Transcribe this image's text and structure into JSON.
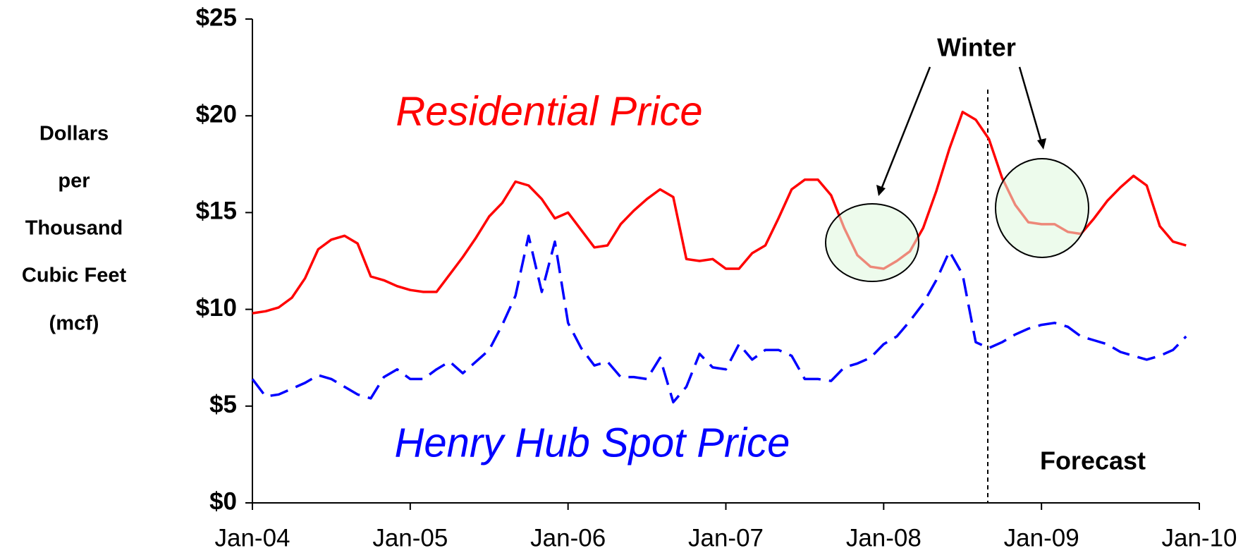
{
  "chart_data": {
    "type": "line",
    "y_label": [
      "Dollars",
      "per",
      "Thousand",
      "Cubic Feet",
      "(mcf)"
    ],
    "annotations": [
      "Winter",
      "Forecast"
    ],
    "categories": [
      "Jan-04",
      null,
      null,
      null,
      null,
      null,
      null,
      null,
      null,
      null,
      null,
      null,
      "Jan-05",
      null,
      null,
      null,
      null,
      null,
      null,
      null,
      null,
      null,
      null,
      null,
      "Jan-06",
      null,
      null,
      null,
      null,
      null,
      null,
      null,
      null,
      null,
      null,
      null,
      "Jan-07",
      null,
      null,
      null,
      null,
      null,
      null,
      null,
      null,
      null,
      null,
      null,
      "Jan-08",
      null,
      null,
      null,
      null,
      null,
      null,
      null,
      null,
      null,
      null,
      null,
      "Jan-09",
      null,
      null,
      null,
      null,
      null,
      null,
      null,
      null,
      null,
      null,
      null,
      "Jan-10"
    ],
    "series": [
      {
        "name": "Residential Price",
        "color": "#ff0000",
        "dashed": false,
        "values": [
          9.8,
          9.9,
          10.1,
          10.6,
          11.6,
          13.1,
          13.6,
          13.8,
          13.4,
          11.7,
          11.5,
          11.2,
          11.0,
          10.9,
          10.9,
          11.8,
          12.7,
          13.7,
          14.8,
          15.5,
          16.6,
          16.4,
          15.7,
          14.7,
          15.0,
          14.1,
          13.2,
          13.3,
          14.4,
          15.1,
          15.7,
          16.2,
          15.8,
          12.6,
          12.5,
          12.6,
          12.1,
          12.1,
          12.9,
          13.3,
          14.7,
          16.2,
          16.7,
          16.7,
          15.9,
          14.2,
          12.8,
          12.2,
          12.1,
          12.5,
          13.0,
          14.2,
          16.1,
          18.3,
          20.2,
          19.8,
          18.8,
          16.8,
          15.4,
          14.5,
          14.4,
          14.4,
          14.0,
          13.9,
          14.7,
          15.6,
          16.3,
          16.9,
          16.4,
          14.3,
          13.5,
          13.3,
          null
        ]
      },
      {
        "name": "Henry Hub Spot Price",
        "color": "#0000ff",
        "dashed": true,
        "values": [
          6.4,
          5.5,
          5.6,
          5.9,
          6.2,
          6.6,
          6.4,
          6.0,
          5.6,
          5.4,
          6.5,
          6.9,
          6.4,
          6.4,
          6.9,
          7.3,
          6.7,
          7.3,
          7.9,
          9.2,
          10.7,
          13.8,
          10.9,
          13.5,
          9.3,
          8.0,
          7.1,
          7.3,
          6.5,
          6.5,
          6.4,
          7.5,
          5.2,
          6.0,
          7.7,
          7.0,
          6.9,
          8.2,
          7.4,
          7.9,
          7.9,
          7.6,
          6.4,
          6.4,
          6.3,
          7.0,
          7.2,
          7.5,
          8.2,
          8.6,
          9.4,
          10.3,
          11.5,
          13.0,
          11.8,
          8.3,
          8.0,
          8.3,
          8.7,
          9.0,
          9.2,
          9.3,
          9.1,
          8.6,
          8.4,
          8.2,
          7.8,
          7.6,
          7.4,
          7.6,
          7.9,
          8.6,
          null
        ]
      }
    ],
    "ylim": [
      0,
      25
    ],
    "yticks": [
      {
        "value": 0,
        "label": "$0"
      },
      {
        "value": 5,
        "label": "$5"
      },
      {
        "value": 10,
        "label": "$10"
      },
      {
        "value": 15,
        "label": "$15"
      },
      {
        "value": 20,
        "label": "$20"
      },
      {
        "value": 25,
        "label": "$25"
      }
    ],
    "grid": false
  }
}
